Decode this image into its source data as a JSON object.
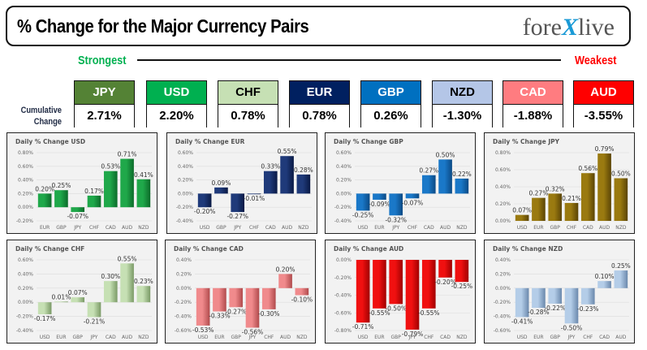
{
  "header": {
    "title": "% Change for the Major Currency Pairs",
    "logo_left": "fore",
    "logo_x": "X",
    "logo_right": "live"
  },
  "scale": {
    "strongest": "Strongest",
    "weakest": "Weakest"
  },
  "cumulative": {
    "label_line1": "Cumulative",
    "label_line2": "Change",
    "items": [
      {
        "currency": "JPY",
        "value": "2.71%",
        "head_bg": "#548235",
        "head_fg": "#ffffff"
      },
      {
        "currency": "USD",
        "value": "2.20%",
        "head_bg": "#00b050",
        "head_fg": "#ffffff"
      },
      {
        "currency": "CHF",
        "value": "0.78%",
        "head_bg": "#c6e0b4",
        "head_fg": "#000000"
      },
      {
        "currency": "EUR",
        "value": "0.78%",
        "head_bg": "#002060",
        "head_fg": "#ffffff"
      },
      {
        "currency": "GBP",
        "value": "0.26%",
        "head_bg": "#0070c0",
        "head_fg": "#ffffff"
      },
      {
        "currency": "NZD",
        "value": "-1.30%",
        "head_bg": "#b4c6e7",
        "head_fg": "#000000"
      },
      {
        "currency": "CAD",
        "value": "-1.88%",
        "head_bg": "#ff7c80",
        "head_fg": "#ffffff"
      },
      {
        "currency": "AUD",
        "value": "-3.55%",
        "head_bg": "#ff0000",
        "head_fg": "#ffffff"
      }
    ]
  },
  "chart_data": [
    {
      "type": "bar",
      "title": "Daily % Change USD",
      "categories": [
        "EUR",
        "GBP",
        "JPY",
        "CHF",
        "CAD",
        "AUD",
        "NZD"
      ],
      "values": [
        0.2,
        0.25,
        -0.07,
        0.17,
        0.53,
        0.71,
        0.41
      ],
      "labels": [
        "0.20%",
        "0.25%",
        "-0.07%",
        "0.17%",
        "0.53%",
        "0.71%",
        "0.41%"
      ],
      "ylim": [
        -0.2,
        0.8
      ],
      "yticks": [
        -0.2,
        0.0,
        0.2,
        0.4,
        0.6,
        0.8
      ],
      "color": "#1fa84a",
      "color_dark": "#0c6b2a",
      "grid": true
    },
    {
      "type": "bar",
      "title": "Daily % Change EUR",
      "categories": [
        "USD",
        "GBP",
        "JPY",
        "CHF",
        "CAD",
        "AUD",
        "NZD"
      ],
      "values": [
        -0.2,
        0.09,
        -0.27,
        -0.01,
        0.33,
        0.55,
        0.28
      ],
      "labels": [
        "-0.20%",
        "0.09%",
        "-0.27%",
        "-0.01%",
        "0.33%",
        "0.55%",
        "0.28%"
      ],
      "ylim": [
        -0.4,
        0.6
      ],
      "yticks": [
        -0.4,
        -0.2,
        0.0,
        0.2,
        0.4,
        0.6
      ],
      "color": "#1f3a7a",
      "color_dark": "#0a1a45",
      "grid": true
    },
    {
      "type": "bar",
      "title": "Daily % Change GBP",
      "categories": [
        "USD",
        "EUR",
        "JPY",
        "CHF",
        "CAD",
        "AUD",
        "NZD"
      ],
      "values": [
        -0.25,
        -0.09,
        -0.32,
        -0.07,
        0.27,
        0.5,
        0.22
      ],
      "labels": [
        "-0.25%",
        "-0.09%",
        "-0.32%",
        "-0.07%",
        "0.27%",
        "0.50%",
        "0.22%"
      ],
      "ylim": [
        -0.4,
        0.6
      ],
      "yticks": [
        -0.4,
        -0.2,
        0.0,
        0.2,
        0.4,
        0.6
      ],
      "color": "#1a78c8",
      "color_dark": "#0b4a85",
      "grid": true
    },
    {
      "type": "bar",
      "title": "Daily % Change JPY",
      "categories": [
        "USD",
        "EUR",
        "GBP",
        "CHF",
        "CAD",
        "AUD",
        "NZD"
      ],
      "values": [
        0.07,
        0.27,
        0.32,
        0.21,
        0.56,
        0.79,
        0.5
      ],
      "labels": [
        "0.07%",
        "0.27%",
        "0.32%",
        "0.21%",
        "0.56%",
        "0.79%",
        "0.50%"
      ],
      "ylim": [
        0.0,
        0.8
      ],
      "yticks": [
        0.0,
        0.2,
        0.4,
        0.6,
        0.8
      ],
      "color": "#9a7a10",
      "color_dark": "#5a4405",
      "grid": true
    },
    {
      "type": "bar",
      "title": "Daily % Change CHF",
      "categories": [
        "USD",
        "EUR",
        "GBP",
        "JPY",
        "CAD",
        "AUD",
        "NZD"
      ],
      "values": [
        -0.17,
        0.01,
        0.07,
        -0.21,
        0.3,
        0.55,
        0.23
      ],
      "labels": [
        "-0.17%",
        "0.01%",
        "0.07%",
        "-0.21%",
        "0.30%",
        "0.55%",
        "0.23%"
      ],
      "ylim": [
        -0.4,
        0.6
      ],
      "yticks": [
        -0.4,
        -0.2,
        0.0,
        0.2,
        0.4,
        0.6
      ],
      "color": "#c6e0b4",
      "color_dark": "#7a9a66",
      "grid": true
    },
    {
      "type": "bar",
      "title": "Daily % Change CAD",
      "categories": [
        "USD",
        "EUR",
        "GBP",
        "JPY",
        "CHF",
        "AUD",
        "NZD"
      ],
      "values": [
        -0.53,
        -0.33,
        -0.27,
        -0.56,
        -0.3,
        0.2,
        -0.1
      ],
      "labels": [
        "-0.53%",
        "-0.33%",
        "-0.27%",
        "-0.56%",
        "-0.30%",
        "0.20%",
        "-0.10%"
      ],
      "ylim": [
        -0.6,
        0.4
      ],
      "yticks": [
        -0.6,
        -0.4,
        -0.2,
        0.0,
        0.2,
        0.4
      ],
      "color": "#f08a8c",
      "color_dark": "#b04a4c",
      "grid": true
    },
    {
      "type": "bar",
      "title": "Daily % Change AUD",
      "categories": [
        "USD",
        "EUR",
        "GBP",
        "JPY",
        "CHF",
        "CAD",
        "NZD"
      ],
      "values": [
        -0.71,
        -0.55,
        -0.5,
        -0.79,
        -0.55,
        -0.2,
        -0.25
      ],
      "labels": [
        "-0.71%",
        "-0.55%",
        "-0.50%",
        "-0.79%",
        "-0.55%",
        "-0.20%",
        "-0.25%"
      ],
      "ylim": [
        -0.8,
        0.0
      ],
      "yticks": [
        -0.8,
        -0.6,
        -0.4,
        -0.2,
        0.0
      ],
      "color": "#f01010",
      "color_dark": "#a00000",
      "grid": true
    },
    {
      "type": "bar",
      "title": "Daily % Change NZD",
      "categories": [
        "USD",
        "EUR",
        "GBP",
        "JPY",
        "CHF",
        "CAD",
        "AUD"
      ],
      "values": [
        -0.41,
        -0.28,
        -0.22,
        -0.5,
        -0.23,
        0.1,
        0.25
      ],
      "labels": [
        "-0.41%",
        "-0.28%",
        "-0.22%",
        "-0.50%",
        "-0.23%",
        "0.10%",
        "0.25%"
      ],
      "ylim": [
        -0.6,
        0.4
      ],
      "yticks": [
        -0.6,
        -0.4,
        -0.2,
        0.0,
        0.2,
        0.4
      ],
      "color": "#b4cde8",
      "color_dark": "#6a88ac",
      "grid": true
    }
  ]
}
